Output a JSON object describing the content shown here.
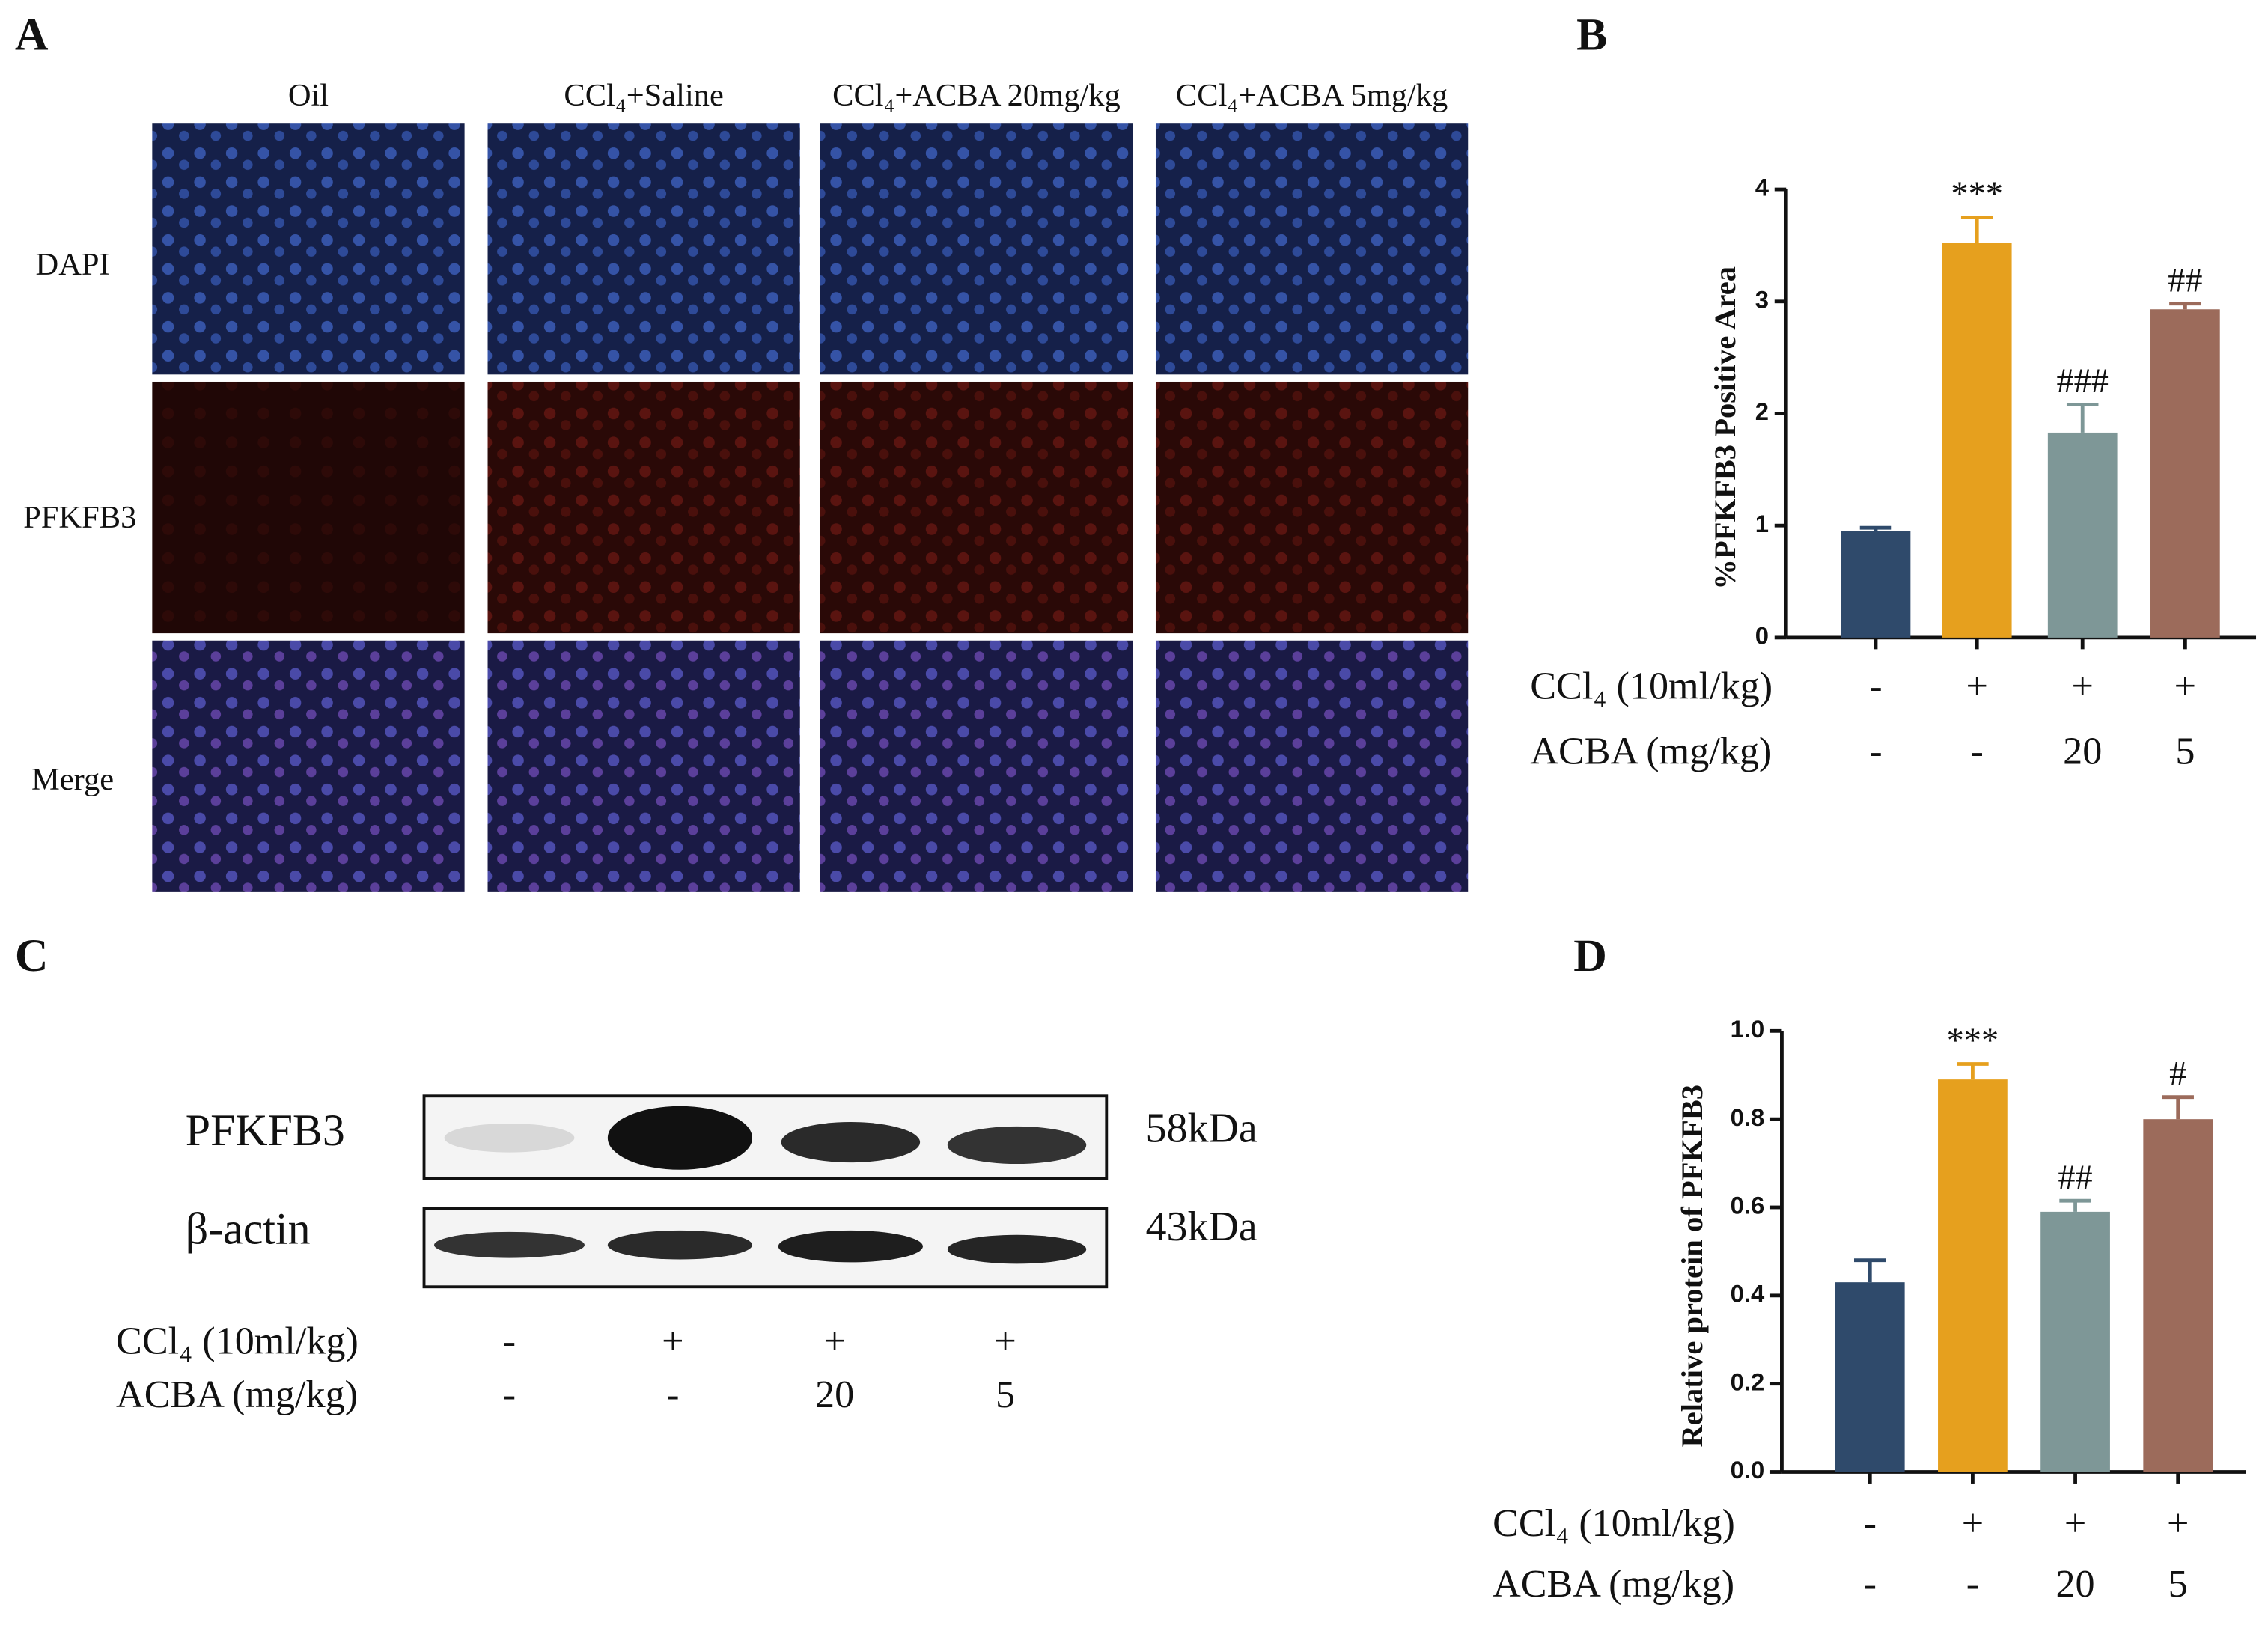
{
  "panel_a": {
    "letter": "A",
    "columns": [
      "Oil",
      "CCl₄+Saline",
      "CCl₄+ACBA 20mg/kg",
      "CCl₄+ACBA 5mg/kg"
    ],
    "rows": [
      "DAPI",
      "PFKFB3",
      "Merge"
    ]
  },
  "panel_c": {
    "letter": "C",
    "blots": [
      {
        "label": "PFKFB3",
        "size": "58kDa"
      },
      {
        "label": "β-actin",
        "size": "43kDa"
      }
    ],
    "treatments": [
      {
        "label": "CCl₄ (10ml/kg)",
        "values": [
          "-",
          "+",
          "+",
          "+"
        ]
      },
      {
        "label": "ACBA (mg/kg)",
        "values": [
          "-",
          "-",
          "20",
          "5"
        ]
      }
    ]
  },
  "chart_data": [
    {
      "type": "bar",
      "letter": "B",
      "ylabel": "%PFKFB3 Positive Area",
      "values": [
        0.95,
        3.52,
        1.83,
        2.93
      ],
      "errors": [
        0.03,
        0.23,
        0.25,
        0.05
      ],
      "colors": [
        "#2f4a6b",
        "#e6a01e",
        "#7e9797",
        "#9c6b5b"
      ],
      "annotations": [
        null,
        "***",
        "###",
        "##"
      ],
      "ylim": [
        0,
        4
      ],
      "yticks": [
        0,
        1,
        2,
        3,
        4
      ],
      "treatments": [
        {
          "label": "CCl₄ (10ml/kg)",
          "values": [
            "-",
            "+",
            "+",
            "+"
          ]
        },
        {
          "label": "ACBA (mg/kg)",
          "values": [
            "-",
            "-",
            "20",
            "5"
          ]
        }
      ]
    },
    {
      "type": "bar",
      "letter": "D",
      "ylabel": "Relative protein of PFKFB3",
      "values": [
        0.43,
        0.89,
        0.59,
        0.8
      ],
      "errors": [
        0.05,
        0.035,
        0.025,
        0.05
      ],
      "colors": [
        "#2f4a6b",
        "#e6a01e",
        "#7e9797",
        "#9c6b5b"
      ],
      "annotations": [
        null,
        "***",
        "##",
        "#"
      ],
      "ylim": [
        0,
        1
      ],
      "yticks": [
        {
          "value": 0,
          "label": "0.0"
        },
        0.2,
        0.4,
        0.6,
        0.8,
        {
          "value": 1,
          "label": "1.0"
        }
      ],
      "treatments": [
        {
          "label": "CCl₄ (10ml/kg)",
          "values": [
            "-",
            "+",
            "+",
            "+"
          ]
        },
        {
          "label": "ACBA (mg/kg)",
          "values": [
            "-",
            "-",
            "20",
            "5"
          ]
        }
      ]
    }
  ]
}
